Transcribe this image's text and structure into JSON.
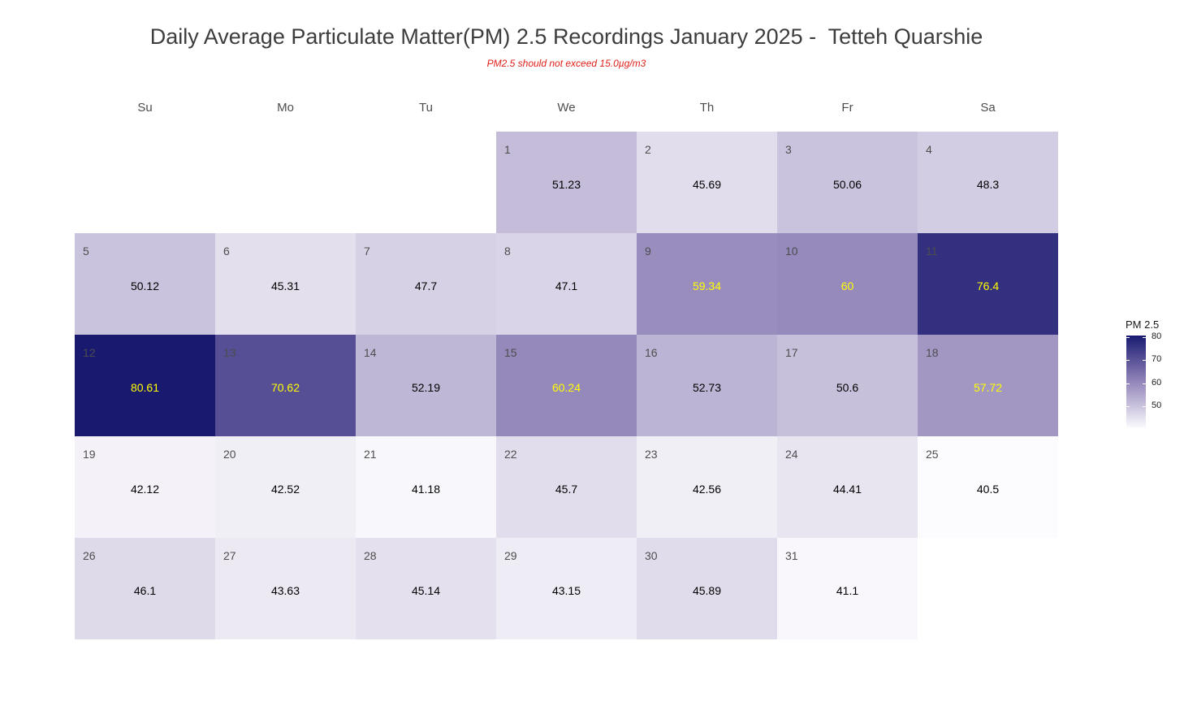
{
  "chart_data": {
    "type": "heatmap",
    "title": "Daily Average Particulate Matter(PM) 2.5 Recordings January 2025 -  Tetteh Quarshie",
    "subtitle": "PM2.5 should not exceed 15.0µg/m3",
    "weekdays": [
      "Su",
      "Mo",
      "Tu",
      "We",
      "Th",
      "Fr",
      "Sa"
    ],
    "first_weekday_index": 3,
    "days": [
      {
        "day": "1",
        "value": "51.23"
      },
      {
        "day": "2",
        "value": "45.69"
      },
      {
        "day": "3",
        "value": "50.06"
      },
      {
        "day": "4",
        "value": "48.3"
      },
      {
        "day": "5",
        "value": "50.12"
      },
      {
        "day": "6",
        "value": "45.31"
      },
      {
        "day": "7",
        "value": "47.7"
      },
      {
        "day": "8",
        "value": "47.1"
      },
      {
        "day": "9",
        "value": "59.34"
      },
      {
        "day": "10",
        "value": "60"
      },
      {
        "day": "11",
        "value": "76.4"
      },
      {
        "day": "12",
        "value": "80.61"
      },
      {
        "day": "13",
        "value": "70.62"
      },
      {
        "day": "14",
        "value": "52.19"
      },
      {
        "day": "15",
        "value": "60.24"
      },
      {
        "day": "16",
        "value": "52.73"
      },
      {
        "day": "17",
        "value": "50.6"
      },
      {
        "day": "18",
        "value": "57.72"
      },
      {
        "day": "19",
        "value": "42.12"
      },
      {
        "day": "20",
        "value": "42.52"
      },
      {
        "day": "21",
        "value": "41.18"
      },
      {
        "day": "22",
        "value": "45.7"
      },
      {
        "day": "23",
        "value": "42.56"
      },
      {
        "day": "24",
        "value": "44.41"
      },
      {
        "day": "25",
        "value": "40.5"
      },
      {
        "day": "26",
        "value": "46.1"
      },
      {
        "day": "27",
        "value": "43.63"
      },
      {
        "day": "28",
        "value": "45.14"
      },
      {
        "day": "29",
        "value": "43.15"
      },
      {
        "day": "30",
        "value": "45.89"
      },
      {
        "day": "31",
        "value": "41.1"
      }
    ],
    "legend": {
      "title": "PM 2.5",
      "ticks": [
        "80",
        "70",
        "60",
        "50"
      ],
      "range": [
        40.5,
        80.61
      ]
    },
    "color_scale": {
      "low": "#fcfbfd",
      "high": "#191970"
    },
    "label_colors": {
      "dark_cells": "#ffff00",
      "light_cells": "#000000"
    },
    "label_color_threshold": 57
  }
}
